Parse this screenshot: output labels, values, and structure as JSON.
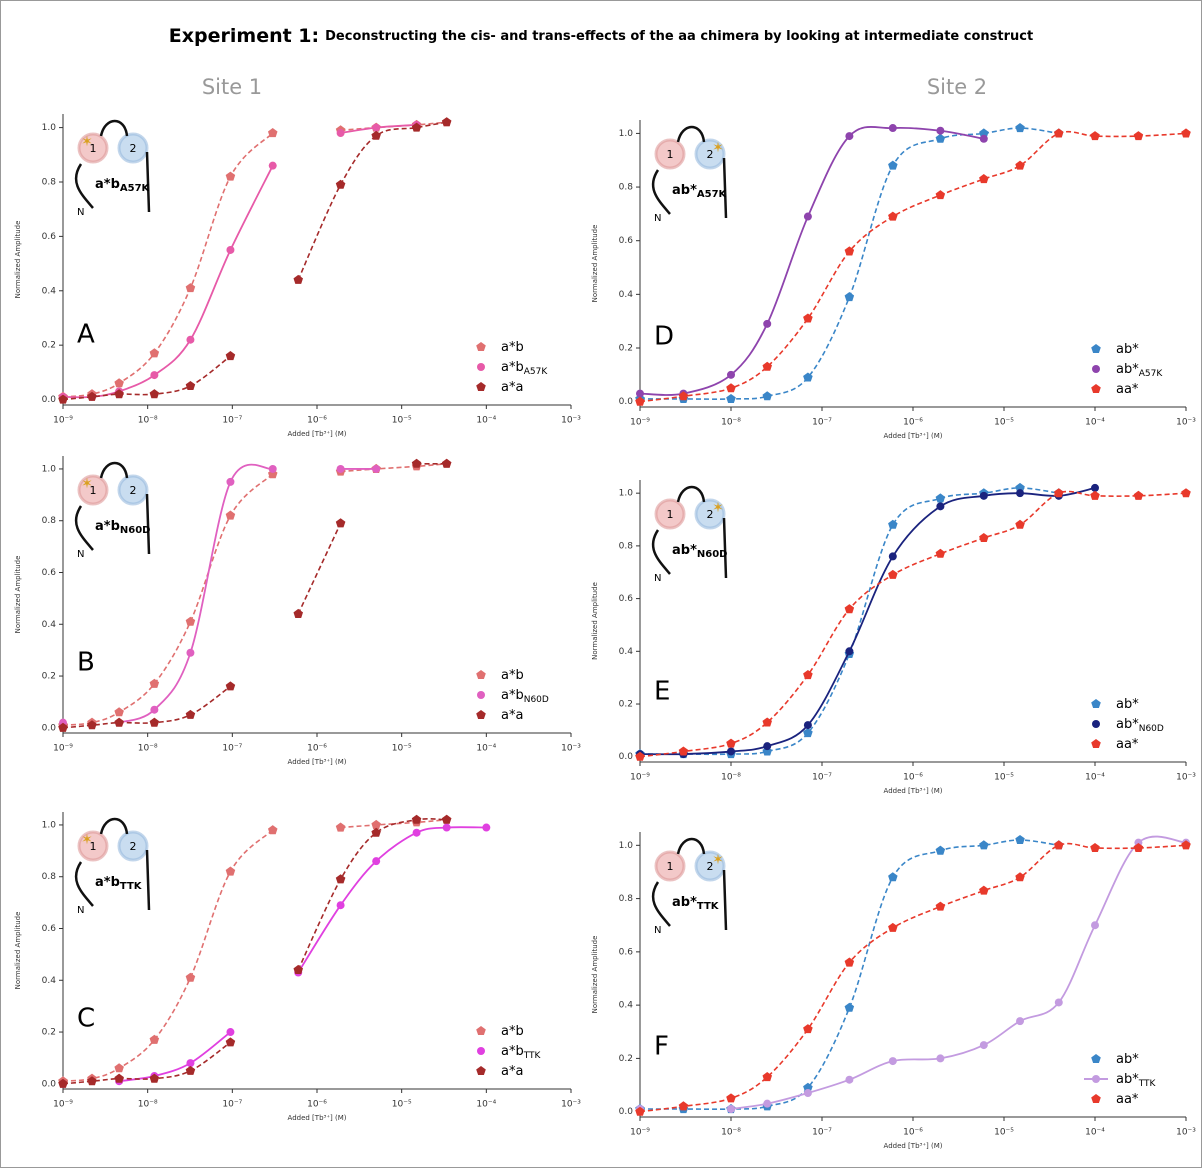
{
  "title": {
    "lead": "Experiment 1:",
    "text": "Deconstructing the cis- and trans-effects of the aa chimera by looking at intermediate construct"
  },
  "sites": [
    "Site 1",
    "Site 2"
  ],
  "chart_data": [
    {
      "type": "scatter",
      "panel": "A",
      "inset": {
        "name": "a*b",
        "sub": "A57K"
      },
      "inset_n": "N",
      "xlabel": "Added [Tb³⁺] (M)",
      "ylabel": "Normalized Amplitude",
      "log_x": true,
      "legend": "lower right",
      "xlim": [
        1e-09,
        0.001
      ],
      "ylim": [
        -0.02,
        1.05
      ],
      "xticks": [
        {
          "value": 1e-09,
          "label": "10⁻⁹"
        },
        {
          "value": 1e-08,
          "label": "10⁻⁸"
        },
        {
          "value": 1e-07,
          "label": "10⁻⁷"
        },
        {
          "value": 1e-06,
          "label": "10⁻⁶"
        },
        {
          "value": 1e-05,
          "label": "10⁻⁵"
        },
        {
          "value": 0.0001,
          "label": "10⁻⁴"
        },
        {
          "value": 0.001,
          "label": "10⁻³"
        }
      ],
      "yticks": [
        {
          "value": 0,
          "label": "0.0"
        },
        0.2,
        0.4,
        0.6,
        0.8,
        {
          "value": 1,
          "label": "1.0"
        }
      ],
      "x": [
        1e-09,
        2.2e-09,
        4.6e-09,
        1.2e-08,
        3.2e-08,
        9.5e-08,
        3e-07,
        6e-07,
        1.9e-06,
        5e-06,
        1.5e-05,
        3.4e-05,
        0.0001
      ],
      "series": [
        {
          "name": "a*b",
          "color": "#e07070",
          "marker": "pentagon",
          "dash": true,
          "values": [
            0.01,
            0.02,
            0.06,
            0.17,
            0.41,
            0.82,
            0.98,
            null,
            0.99,
            1.0,
            1.01,
            1.02,
            null
          ]
        },
        {
          "name": "a*b",
          "name_sub": "A57K",
          "color": "#e75aa8",
          "marker": "circle",
          "dash": false,
          "values": [
            0.01,
            0.01,
            0.03,
            0.09,
            0.22,
            0.55,
            0.86,
            null,
            0.98,
            1.0,
            1.01,
            null,
            null
          ]
        },
        {
          "name": "a*a",
          "color": "#a52a2a",
          "marker": "pentagon",
          "dash": true,
          "values": [
            0.0,
            0.01,
            0.02,
            0.02,
            0.05,
            0.16,
            null,
            0.44,
            0.79,
            0.97,
            1.0,
            1.02,
            null
          ]
        }
      ]
    },
    {
      "type": "scatter",
      "panel": "B",
      "inset": {
        "name": "a*b",
        "sub": "N60D"
      },
      "inset_n": "N",
      "xlabel": "Added [Tb³⁺] (M)",
      "ylabel": "Normalized Amplitude",
      "log_x": true,
      "legend": "lower right",
      "xlim": [
        1e-09,
        0.001
      ],
      "ylim": [
        -0.02,
        1.05
      ],
      "xticks": [
        {
          "value": 1e-09,
          "label": "10⁻⁹"
        },
        {
          "value": 1e-08,
          "label": "10⁻⁸"
        },
        {
          "value": 1e-07,
          "label": "10⁻⁷"
        },
        {
          "value": 1e-06,
          "label": "10⁻⁶"
        },
        {
          "value": 1e-05,
          "label": "10⁻⁵"
        },
        {
          "value": 0.0001,
          "label": "10⁻⁴"
        },
        {
          "value": 0.001,
          "label": "10⁻³"
        }
      ],
      "yticks": [
        {
          "value": 0,
          "label": "0.0"
        },
        0.2,
        0.4,
        0.6,
        0.8,
        {
          "value": 1,
          "label": "1.0"
        }
      ],
      "x": [
        1e-09,
        2.2e-09,
        4.6e-09,
        1.2e-08,
        3.2e-08,
        9.5e-08,
        3e-07,
        6e-07,
        1.9e-06,
        5e-06,
        1.5e-05,
        3.4e-05,
        0.0001
      ],
      "series": [
        {
          "name": "a*b",
          "color": "#e07070",
          "marker": "pentagon",
          "dash": true,
          "values": [
            0.01,
            0.02,
            0.06,
            0.17,
            0.41,
            0.82,
            0.98,
            null,
            0.99,
            1.0,
            1.01,
            1.02,
            null
          ]
        },
        {
          "name": "a*b",
          "name_sub": "N60D",
          "color": "#e060c0",
          "marker": "circle",
          "dash": false,
          "values": [
            0.02,
            null,
            0.02,
            0.07,
            0.29,
            0.95,
            1.0,
            null,
            1.0,
            1.0,
            null,
            null,
            null
          ]
        },
        {
          "name": "a*a",
          "color": "#a52a2a",
          "marker": "pentagon",
          "dash": true,
          "values": [
            0.0,
            0.01,
            0.02,
            0.02,
            0.05,
            0.16,
            null,
            0.44,
            0.79,
            null,
            1.02,
            1.02,
            null
          ]
        }
      ]
    },
    {
      "type": "scatter",
      "panel": "C",
      "inset": {
        "name": "a*b",
        "sub": "TTK"
      },
      "inset_n": "N",
      "xlabel": "Added [Tb³⁺] (M)",
      "ylabel": "Normalized Amplitude",
      "log_x": true,
      "legend": "lower right",
      "xlim": [
        1e-09,
        0.001
      ],
      "ylim": [
        -0.02,
        1.05
      ],
      "xticks": [
        {
          "value": 1e-09,
          "label": "10⁻⁹"
        },
        {
          "value": 1e-08,
          "label": "10⁻⁸"
        },
        {
          "value": 1e-07,
          "label": "10⁻⁷"
        },
        {
          "value": 1e-06,
          "label": "10⁻⁶"
        },
        {
          "value": 1e-05,
          "label": "10⁻⁵"
        },
        {
          "value": 0.0001,
          "label": "10⁻⁴"
        },
        {
          "value": 0.001,
          "label": "10⁻³"
        }
      ],
      "yticks": [
        {
          "value": 0,
          "label": "0.0"
        },
        0.2,
        0.4,
        0.6,
        0.8,
        {
          "value": 1,
          "label": "1.0"
        }
      ],
      "x": [
        1e-09,
        2.2e-09,
        4.6e-09,
        1.2e-08,
        3.2e-08,
        9.5e-08,
        3e-07,
        6e-07,
        1.9e-06,
        5e-06,
        1.5e-05,
        3.4e-05,
        0.0001
      ],
      "series": [
        {
          "name": "a*b",
          "color": "#e07070",
          "marker": "pentagon",
          "dash": true,
          "values": [
            0.01,
            0.02,
            0.06,
            0.17,
            0.41,
            0.82,
            0.98,
            null,
            0.99,
            1.0,
            1.01,
            1.02,
            null
          ]
        },
        {
          "name": "a*b",
          "name_sub": "TTK",
          "color": "#e040e0",
          "marker": "circle",
          "dash": false,
          "values": [
            0.0,
            null,
            0.01,
            0.03,
            0.08,
            0.2,
            null,
            0.43,
            0.69,
            0.86,
            0.97,
            0.99,
            0.99
          ]
        },
        {
          "name": "a*a",
          "color": "#a52a2a",
          "marker": "pentagon",
          "dash": true,
          "values": [
            0.0,
            0.01,
            0.02,
            0.02,
            0.05,
            0.16,
            null,
            0.44,
            0.79,
            0.97,
            1.02,
            1.02,
            null
          ]
        }
      ]
    },
    {
      "type": "scatter",
      "panel": "D",
      "inset": {
        "name": "ab*",
        "sub": "A57K"
      },
      "inset_n": "N",
      "xlabel": "Added [Tb³⁺] (M)",
      "ylabel": "Normalized Amplitude",
      "log_x": true,
      "legend": "lower right",
      "xlim": [
        1e-09,
        0.001
      ],
      "ylim": [
        -0.02,
        1.05
      ],
      "xticks": [
        {
          "value": 1e-09,
          "label": "10⁻⁹"
        },
        {
          "value": 1e-08,
          "label": "10⁻⁸"
        },
        {
          "value": 1e-07,
          "label": "10⁻⁷"
        },
        {
          "value": 1e-06,
          "label": "10⁻⁶"
        },
        {
          "value": 1e-05,
          "label": "10⁻⁵"
        },
        {
          "value": 0.0001,
          "label": "10⁻⁴"
        },
        {
          "value": 0.001,
          "label": "10⁻³"
        }
      ],
      "yticks": [
        {
          "value": 0,
          "label": "0.0"
        },
        0.2,
        0.4,
        0.6,
        0.8,
        {
          "value": 1,
          "label": "1.0"
        }
      ],
      "x": [
        1e-09,
        3e-09,
        1e-08,
        2.5e-08,
        7e-08,
        2e-07,
        6e-07,
        2e-06,
        6e-06,
        1.5e-05,
        4e-05,
        0.0001,
        0.0003,
        0.001
      ],
      "series": [
        {
          "name": "ab*",
          "color": "#3a86c8",
          "marker": "pentagon",
          "dash": true,
          "values": [
            0.01,
            0.01,
            0.01,
            0.02,
            0.09,
            0.39,
            0.88,
            0.98,
            1.0,
            1.02,
            1.0,
            null,
            null,
            null
          ]
        },
        {
          "name": "ab*",
          "name_sub": "A57K",
          "color": "#8e44ad",
          "marker": "circle",
          "dash": false,
          "values": [
            0.03,
            0.03,
            0.1,
            0.29,
            0.69,
            0.99,
            1.02,
            1.01,
            0.98,
            null,
            null,
            null,
            null,
            null
          ]
        },
        {
          "name": "aa*",
          "color": "#e8392b",
          "marker": "pentagon",
          "dash": true,
          "values": [
            0.0,
            0.02,
            0.05,
            0.13,
            0.31,
            0.56,
            0.69,
            0.77,
            0.83,
            0.88,
            1.0,
            0.99,
            0.99,
            1.0
          ]
        }
      ]
    },
    {
      "type": "scatter",
      "panel": "E",
      "inset": {
        "name": "ab*",
        "sub": "N60D"
      },
      "inset_n": "N",
      "xlabel": "Added [Tb³⁺] (M)",
      "ylabel": "Normalized Amplitude",
      "log_x": true,
      "legend": "lower right",
      "xlim": [
        1e-09,
        0.001
      ],
      "ylim": [
        -0.02,
        1.05
      ],
      "xticks": [
        {
          "value": 1e-09,
          "label": "10⁻⁹"
        },
        {
          "value": 1e-08,
          "label": "10⁻⁸"
        },
        {
          "value": 1e-07,
          "label": "10⁻⁷"
        },
        {
          "value": 1e-06,
          "label": "10⁻⁶"
        },
        {
          "value": 1e-05,
          "label": "10⁻⁵"
        },
        {
          "value": 0.0001,
          "label": "10⁻⁴"
        },
        {
          "value": 0.001,
          "label": "10⁻³"
        }
      ],
      "yticks": [
        {
          "value": 0,
          "label": "0.0"
        },
        0.2,
        0.4,
        0.6,
        0.8,
        {
          "value": 1,
          "label": "1.0"
        }
      ],
      "x": [
        1e-09,
        3e-09,
        1e-08,
        2.5e-08,
        7e-08,
        2e-07,
        6e-07,
        2e-06,
        6e-06,
        1.5e-05,
        4e-05,
        0.0001,
        0.0003,
        0.001
      ],
      "series": [
        {
          "name": "ab*",
          "color": "#3a86c8",
          "marker": "pentagon",
          "dash": true,
          "values": [
            0.01,
            0.01,
            0.01,
            0.02,
            0.09,
            0.39,
            0.88,
            0.98,
            1.0,
            1.02,
            1.0,
            null,
            null,
            null
          ]
        },
        {
          "name": "ab*",
          "name_sub": "N60D",
          "color": "#1a237e",
          "marker": "circle",
          "dash": false,
          "values": [
            0.01,
            0.01,
            0.02,
            0.04,
            0.12,
            0.4,
            0.76,
            0.95,
            0.99,
            1.0,
            0.99,
            1.02,
            null,
            null
          ]
        },
        {
          "name": "aa*",
          "color": "#e8392b",
          "marker": "pentagon",
          "dash": true,
          "values": [
            0.0,
            0.02,
            0.05,
            0.13,
            0.31,
            0.56,
            0.69,
            0.77,
            0.83,
            0.88,
            1.0,
            0.99,
            0.99,
            1.0
          ]
        }
      ]
    },
    {
      "type": "scatter",
      "panel": "F",
      "inset": {
        "name": "ab*",
        "sub": "TTK"
      },
      "inset_n": "N",
      "xlabel": "Added [Tb³⁺] (M)",
      "ylabel": "Normalized Amplitude",
      "log_x": true,
      "legend": "lower right",
      "xlim": [
        1e-09,
        0.001
      ],
      "ylim": [
        -0.02,
        1.05
      ],
      "xticks": [
        {
          "value": 1e-09,
          "label": "10⁻⁹"
        },
        {
          "value": 1e-08,
          "label": "10⁻⁸"
        },
        {
          "value": 1e-07,
          "label": "10⁻⁷"
        },
        {
          "value": 1e-06,
          "label": "10⁻⁶"
        },
        {
          "value": 1e-05,
          "label": "10⁻⁵"
        },
        {
          "value": 0.0001,
          "label": "10⁻⁴"
        },
        {
          "value": 0.001,
          "label": "10⁻³"
        }
      ],
      "yticks": [
        {
          "value": 0,
          "label": "0.0"
        },
        0.2,
        0.4,
        0.6,
        0.8,
        {
          "value": 1,
          "label": "1.0"
        }
      ],
      "x": [
        1e-09,
        3e-09,
        1e-08,
        2.5e-08,
        7e-08,
        2e-07,
        6e-07,
        2e-06,
        6e-06,
        1.5e-05,
        4e-05,
        0.0001,
        0.0003,
        0.001
      ],
      "series": [
        {
          "name": "ab*",
          "color": "#3a86c8",
          "marker": "pentagon",
          "dash": true,
          "values": [
            0.01,
            0.01,
            0.01,
            0.02,
            0.09,
            0.39,
            0.88,
            0.98,
            1.0,
            1.02,
            1.0,
            null,
            null,
            null
          ]
        },
        {
          "name": "ab*",
          "name_sub": "TTK",
          "color": "#c39be0",
          "marker": "circle",
          "dash": false,
          "legend_line": true,
          "values": [
            0.01,
            null,
            0.01,
            0.03,
            0.07,
            0.12,
            0.19,
            0.2,
            0.25,
            0.34,
            0.41,
            0.7,
            1.01,
            1.01
          ]
        },
        {
          "name": "aa*",
          "color": "#e8392b",
          "marker": "pentagon",
          "dash": true,
          "values": [
            0.0,
            0.02,
            0.05,
            0.13,
            0.31,
            0.56,
            0.69,
            0.77,
            0.83,
            0.88,
            1.0,
            0.99,
            0.99,
            1.0
          ]
        }
      ]
    }
  ]
}
